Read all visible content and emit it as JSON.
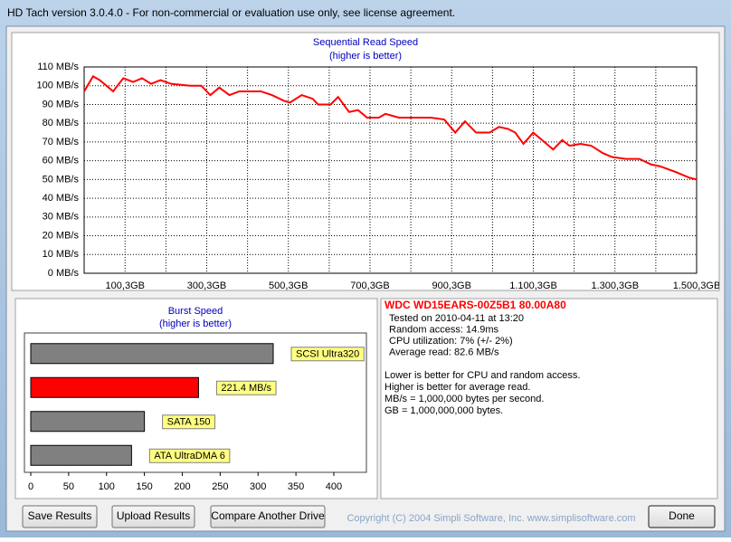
{
  "window_title": "HD Tach version 3.0.4.0  - For non-commercial or evaluation use only, see license agreement.",
  "chart_data": [
    {
      "type": "line",
      "title": "Sequential Read Speed",
      "subtitle": "(higher is better)",
      "x": [
        0,
        22,
        38,
        71,
        96,
        120,
        142,
        164,
        187,
        213,
        260,
        287,
        309,
        331,
        356,
        380,
        433,
        460,
        489,
        504,
        533,
        560,
        573,
        604,
        622,
        649,
        671,
        693,
        722,
        738,
        771,
        804,
        849,
        882,
        909,
        933,
        960,
        993,
        1016,
        1038,
        1056,
        1076,
        1100,
        1122,
        1149,
        1171,
        1189,
        1216,
        1242,
        1271,
        1293,
        1327,
        1360,
        1389,
        1411,
        1449,
        1482,
        1500
      ],
      "values": [
        97,
        105,
        103,
        97,
        104,
        102,
        104,
        101,
        103,
        101,
        100,
        100,
        95,
        99,
        95,
        97,
        97,
        95,
        92,
        91,
        95,
        93,
        90,
        90,
        94,
        86,
        87,
        83,
        83,
        85,
        83,
        83,
        83,
        82,
        75,
        81,
        75,
        75,
        78,
        77,
        75,
        69,
        75,
        71,
        66,
        71,
        68,
        69,
        68,
        64,
        62,
        61,
        61,
        58,
        57,
        54,
        51,
        50
      ],
      "color": "#ff0000",
      "xlim": [
        0,
        1500.3
      ],
      "xticks": [
        {
          "value": 100.3,
          "label": "100,3GB"
        },
        {
          "value": 300.3,
          "label": "300,3GB"
        },
        {
          "value": 500.3,
          "label": "500,3GB"
        },
        {
          "value": 700.3,
          "label": "700,3GB"
        },
        {
          "value": 900.3,
          "label": "900,3GB"
        },
        {
          "value": 1100.3,
          "label": "1.100,3GB"
        },
        {
          "value": 1300.3,
          "label": "1.300,3GB"
        },
        {
          "value": 1500.3,
          "label": "1.500,3GB"
        }
      ],
      "xgrid": [
        200.3,
        400.3,
        600.3,
        800.3,
        1000.3,
        1200.3,
        1400.3
      ],
      "ylim": [
        0,
        110
      ],
      "yticks": [
        {
          "value": 0,
          "label": "0 MB/s"
        },
        {
          "value": 10,
          "label": "10 MB/s"
        },
        {
          "value": 20,
          "label": "20 MB/s"
        },
        {
          "value": 30,
          "label": "30 MB/s"
        },
        {
          "value": 40,
          "label": "40 MB/s"
        },
        {
          "value": 50,
          "label": "50 MB/s"
        },
        {
          "value": 60,
          "label": "60 MB/s"
        },
        {
          "value": 70,
          "label": "70 MB/s"
        },
        {
          "value": 80,
          "label": "80 MB/s"
        },
        {
          "value": 90,
          "label": "90 MB/s"
        },
        {
          "value": 100,
          "label": "100 MB/s"
        },
        {
          "value": 110,
          "label": "110 MB/s"
        }
      ],
      "grid": true
    },
    {
      "type": "hbar",
      "title": "Burst Speed",
      "subtitle": "(higher is better)",
      "categories": [
        "SCSI Ultra320",
        null,
        "SATA 150",
        "ATA UltraDMA 6"
      ],
      "values": [
        320,
        221.4,
        150,
        133
      ],
      "value_labels": [
        null,
        "221.4 MB/s",
        null,
        null
      ],
      "colors": [
        "#808080",
        "#ff0000",
        "#808080",
        "#808080"
      ],
      "label_color": "#ffff80",
      "xlim": [
        0,
        443
      ],
      "xticks": [
        0,
        50,
        100,
        150,
        200,
        250,
        300,
        350,
        400
      ]
    }
  ],
  "info": {
    "title": "WDC WD15EARS-00Z5B1 80.00A80",
    "details": [
      "Tested on 2010-04-11 at 13:20",
      "Random access: 14.9ms",
      "CPU utilization: 7% (+/- 2%)",
      "Average read: 82.6 MB/s"
    ],
    "notes": [
      "Lower is better for CPU and random access.",
      "Higher is better for average read.",
      "MB/s = 1,000,000 bytes per second.",
      "GB = 1,000,000,000 bytes."
    ]
  },
  "buttons": [
    "Save Results",
    "Upload Results",
    "Compare Another Drive",
    "Done"
  ],
  "copyright": "Copyright (C) 2004 Simpli Software, Inc. www.simplisoftware.com"
}
